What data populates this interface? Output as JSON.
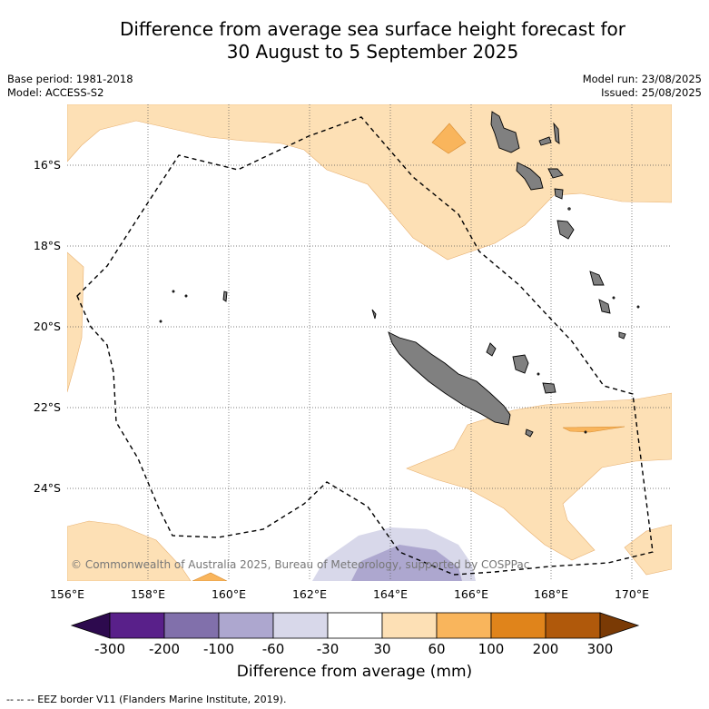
{
  "title_line1": "Difference from average sea surface height forecast for",
  "title_line2": "30 August to 5 September 2025",
  "base_period": "Base period: 1981-2018",
  "model": "Model: ACCESS-S2",
  "model_run": "Model run: 23/08/2025",
  "issued": "Issued: 25/08/2025",
  "y_ticks": [
    "16°S",
    "18°S",
    "20°S",
    "22°S",
    "24°S"
  ],
  "x_ticks": [
    "156°E",
    "158°E",
    "160°E",
    "162°E",
    "164°E",
    "166°E",
    "168°E",
    "170°E"
  ],
  "copyright": "© Commonwealth of Australia 2025, Bureau of Meteorology, supported by COSPPac",
  "colorbar": {
    "ticks": [
      "-300",
      "-200",
      "-100",
      "-60",
      "-30",
      "30",
      "60",
      "100",
      "200",
      "300"
    ],
    "colors": [
      "#2d0a4e",
      "#59208a",
      "#8170ab",
      "#ada7cf",
      "#d8d8ea",
      "#ffffff",
      "#fde0b5",
      "#f9b55c",
      "#e0841b",
      "#b0590b",
      "#7a3a05"
    ],
    "label": "Difference from average (mm)"
  },
  "footnote": "--  --  -- EEZ border V11 (Flanders Marine Institute, 2019)."
}
